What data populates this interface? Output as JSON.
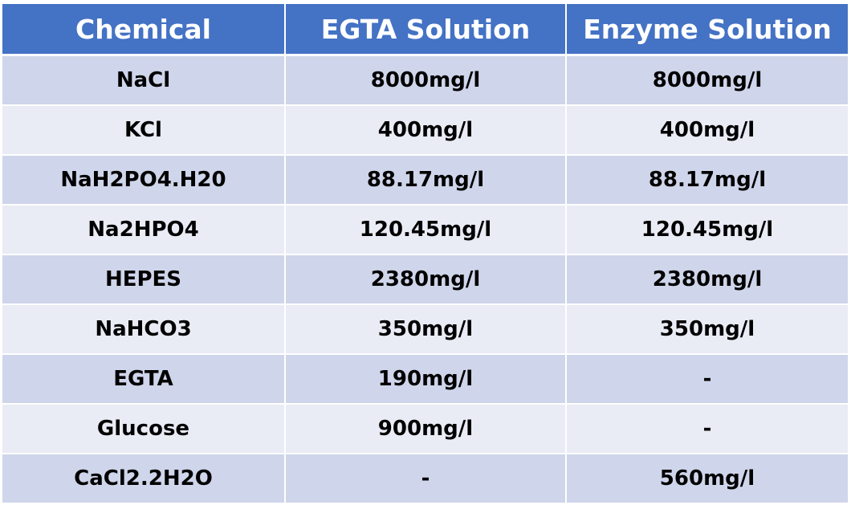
{
  "table": {
    "headers": [
      "Chemical",
      "EGTA Solution",
      "Enzyme Solution"
    ],
    "rows": [
      [
        "NaCl",
        "8000mg/l",
        "8000mg/l"
      ],
      [
        "KCl",
        "400mg/l",
        "400mg/l"
      ],
      [
        "NaH2PO4.H20",
        "88.17mg/l",
        "88.17mg/l"
      ],
      [
        "Na2HPO4",
        "120.45mg/l",
        "120.45mg/l"
      ],
      [
        "HEPES",
        "2380mg/l",
        "2380mg/l"
      ],
      [
        "NaHCO3",
        "350mg/l",
        "350mg/l"
      ],
      [
        "EGTA",
        "190mg/l",
        "-"
      ],
      [
        "Glucose",
        "900mg/l",
        "-"
      ],
      [
        "CaCl2.2H2O",
        "-",
        "560mg/l"
      ]
    ]
  },
  "colors": {
    "header_bg": "#4472c4",
    "header_text": "#ffffff",
    "row_odd_bg": "#cfd5ea",
    "row_even_bg": "#e9ebf5"
  }
}
